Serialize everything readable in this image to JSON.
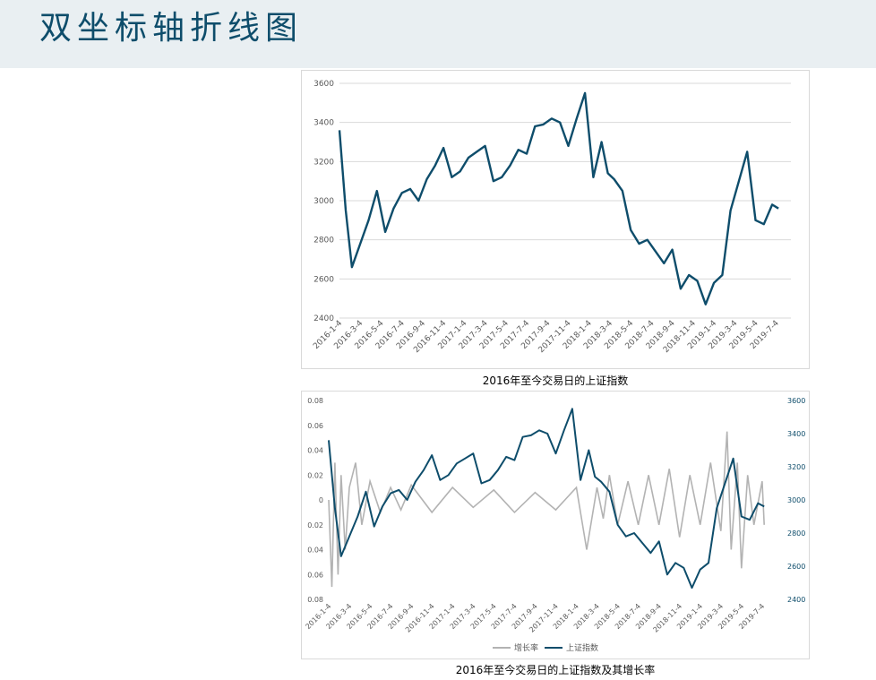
{
  "page": {
    "title": "双坐标轴折线图"
  },
  "captions": {
    "chart1": "2016年至今交易日的上证指数",
    "chart2": "2016年至今交易日的上证指数及其增长率"
  },
  "colors": {
    "index_line": "#0e4d6b",
    "growth_line": "#b3b3b3",
    "axis_text": "#595959",
    "grid": "#d9d9d9",
    "header_bg": "#e9eff2"
  },
  "chart_data": [
    {
      "type": "line",
      "title": "",
      "xlabel": "",
      "ylabel": "",
      "ylim": [
        2400,
        3600
      ],
      "yticks": [
        "2400",
        "2600",
        "2800",
        "3000",
        "3200",
        "3400",
        "3600"
      ],
      "categories": [
        "2016-1-4",
        "2016-3-4",
        "2016-5-4",
        "2016-7-4",
        "2016-9-4",
        "2016-11-4",
        "2017-1-4",
        "2017-3-4",
        "2017-5-4",
        "2017-7-4",
        "2017-9-4",
        "2017-11-4",
        "2018-1-4",
        "2018-3-4",
        "2018-5-4",
        "2018-7-4",
        "2018-9-4",
        "2018-11-4",
        "2019-1-4",
        "2019-3-4",
        "2019-5-4",
        "2019-7-4"
      ],
      "grid": true,
      "series": [
        {
          "name": "上证指数",
          "x": [
            0,
            0.3,
            0.6,
            1,
            1.4,
            1.8,
            2.2,
            2.6,
            3,
            3.4,
            3.8,
            4.2,
            4.6,
            5,
            5.4,
            5.8,
            6.2,
            6.6,
            7,
            7.4,
            7.8,
            8.2,
            8.6,
            9,
            9.4,
            9.8,
            10.2,
            10.6,
            11,
            11.4,
            11.8,
            12.2,
            12.6,
            12.9,
            13.2,
            13.6,
            14,
            14.4,
            14.8,
            15.2,
            15.6,
            16,
            16.4,
            16.8,
            17.2,
            17.6,
            18,
            18.4,
            18.8,
            19.2,
            19.6,
            20,
            20.4,
            20.8,
            21.1
          ],
          "values": [
            3360,
            2950,
            2660,
            2780,
            2900,
            3050,
            2840,
            2960,
            3040,
            3060,
            3000,
            3110,
            3180,
            3270,
            3120,
            3150,
            3220,
            3250,
            3280,
            3100,
            3120,
            3180,
            3260,
            3240,
            3380,
            3390,
            3420,
            3400,
            3280,
            3420,
            3550,
            3120,
            3300,
            3140,
            3110,
            3050,
            2850,
            2780,
            2800,
            2740,
            2680,
            2750,
            2550,
            2620,
            2590,
            2470,
            2580,
            2620,
            2950,
            3100,
            3250,
            2900,
            2880,
            2980,
            2960
          ]
        }
      ]
    },
    {
      "type": "line",
      "title": "",
      "xlabel": "",
      "ylabel": "",
      "ylim": [
        -0.08,
        0.08
      ],
      "y2lim": [
        2400,
        3600
      ],
      "yticks": [
        "0.08",
        "0.06",
        "0.04",
        "0.02",
        "0",
        "0.02",
        "0.04",
        "0.06",
        "0.08"
      ],
      "y2ticks": [
        "2400",
        "2600",
        "2800",
        "3000",
        "3200",
        "3400",
        "3600"
      ],
      "categories": [
        "2016-1-4",
        "2016-3-4",
        "2016-5-4",
        "2016-7-4",
        "2016-9-4",
        "2016-11-4",
        "2017-1-4",
        "2017-3-4",
        "2017-5-4",
        "2017-7-4",
        "2017-9-4",
        "2017-11-4",
        "2018-1-4",
        "2018-3-4",
        "2018-5-4",
        "2018-7-4",
        "2018-9-4",
        "2018-11-4",
        "2019-1-4",
        "2019-3-4",
        "2019-5-4",
        "2019-7-4"
      ],
      "legend": "bottom",
      "grid": false,
      "series": [
        {
          "name": "增长率",
          "axis": "left",
          "x": [
            0,
            0.15,
            0.3,
            0.45,
            0.6,
            0.8,
            1,
            1.3,
            1.6,
            2,
            2.5,
            3,
            3.5,
            4,
            5,
            6,
            7,
            8,
            9,
            10,
            11,
            12,
            12.5,
            13,
            13.3,
            13.6,
            14,
            14.5,
            15,
            15.5,
            16,
            16.5,
            17,
            17.5,
            18,
            18.5,
            19,
            19.3,
            19.5,
            19.8,
            20,
            20.3,
            20.6,
            21,
            21.1
          ],
          "values": [
            0,
            -0.07,
            0.03,
            -0.06,
            0.02,
            -0.04,
            0.01,
            0.03,
            -0.02,
            0.015,
            -0.01,
            0.01,
            -0.008,
            0.012,
            -0.01,
            0.01,
            -0.006,
            0.008,
            -0.01,
            0.006,
            -0.008,
            0.01,
            -0.04,
            0.01,
            -0.015,
            0.02,
            -0.02,
            0.015,
            -0.02,
            0.02,
            -0.02,
            0.025,
            -0.03,
            0.02,
            -0.02,
            0.03,
            -0.025,
            0.055,
            -0.04,
            0.03,
            -0.055,
            0.02,
            -0.02,
            0.015,
            -0.02
          ]
        },
        {
          "name": "上证指数",
          "axis": "right",
          "x": [
            0,
            0.3,
            0.6,
            1,
            1.4,
            1.8,
            2.2,
            2.6,
            3,
            3.4,
            3.8,
            4.2,
            4.6,
            5,
            5.4,
            5.8,
            6.2,
            6.6,
            7,
            7.4,
            7.8,
            8.2,
            8.6,
            9,
            9.4,
            9.8,
            10.2,
            10.6,
            11,
            11.4,
            11.8,
            12.2,
            12.6,
            12.9,
            13.2,
            13.6,
            14,
            14.4,
            14.8,
            15.2,
            15.6,
            16,
            16.4,
            16.8,
            17.2,
            17.6,
            18,
            18.4,
            18.8,
            19.2,
            19.6,
            20,
            20.4,
            20.8,
            21.1
          ],
          "values": [
            3360,
            2950,
            2660,
            2780,
            2900,
            3050,
            2840,
            2960,
            3040,
            3060,
            3000,
            3110,
            3180,
            3270,
            3120,
            3150,
            3220,
            3250,
            3280,
            3100,
            3120,
            3180,
            3260,
            3240,
            3380,
            3390,
            3420,
            3400,
            3280,
            3420,
            3550,
            3120,
            3300,
            3140,
            3110,
            3050,
            2850,
            2780,
            2800,
            2740,
            2680,
            2750,
            2550,
            2620,
            2590,
            2470,
            2580,
            2620,
            2950,
            3100,
            3250,
            2900,
            2880,
            2980,
            2960
          ]
        }
      ]
    }
  ]
}
